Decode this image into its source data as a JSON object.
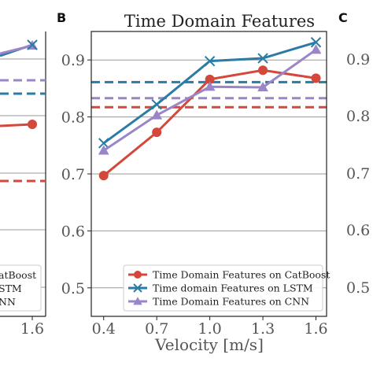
{
  "panels": {
    "left_partial": {
      "x_tick_last": "1.6",
      "legend_fragments": [
        "atBoost",
        "STM",
        "NN"
      ],
      "colors": {
        "catboost": "#d4483b",
        "lstm": "#2a7ba6",
        "cnn": "#9b85c9"
      }
    },
    "right_partial": {
      "letter": "C",
      "y_ticks": [
        "0.9",
        "0.8",
        "0.7",
        "0.6",
        "0.5"
      ]
    }
  },
  "chart_data": {
    "type": "line",
    "panel_letter": "B",
    "title": "Time Domain Features",
    "xlabel": "Velocity [m/s]",
    "ylabel": "",
    "x": [
      0.4,
      0.7,
      1.0,
      1.3,
      1.6
    ],
    "x_tick_labels": [
      "0.4",
      "0.7",
      "1.0",
      "1.3",
      "1.6"
    ],
    "y_ticks": [
      0.5,
      0.6,
      0.7,
      0.8,
      0.9
    ],
    "y_tick_labels": [
      "0.5",
      "0.6",
      "0.7",
      "0.8",
      "0.9"
    ],
    "xlim": [
      0.33,
      1.66
    ],
    "ylim": [
      0.45,
      0.95
    ],
    "grid": "horizontal",
    "legend_position": "lower-right",
    "series": [
      {
        "name": "Time Domain Features on CatBoost",
        "color": "#d4483b",
        "marker": "circle",
        "values": [
          0.697,
          0.773,
          0.866,
          0.882,
          0.868
        ],
        "mean": 0.817
      },
      {
        "name": "Time domain Features on LSTM",
        "color": "#2a7ba6",
        "marker": "x",
        "values": [
          0.754,
          0.822,
          0.898,
          0.903,
          0.931
        ],
        "mean": 0.861
      },
      {
        "name": "Time Domain Features on CNN",
        "color": "#9b85c9",
        "marker": "triangle",
        "values": [
          0.741,
          0.803,
          0.853,
          0.852,
          0.918
        ],
        "mean": 0.833
      }
    ]
  }
}
